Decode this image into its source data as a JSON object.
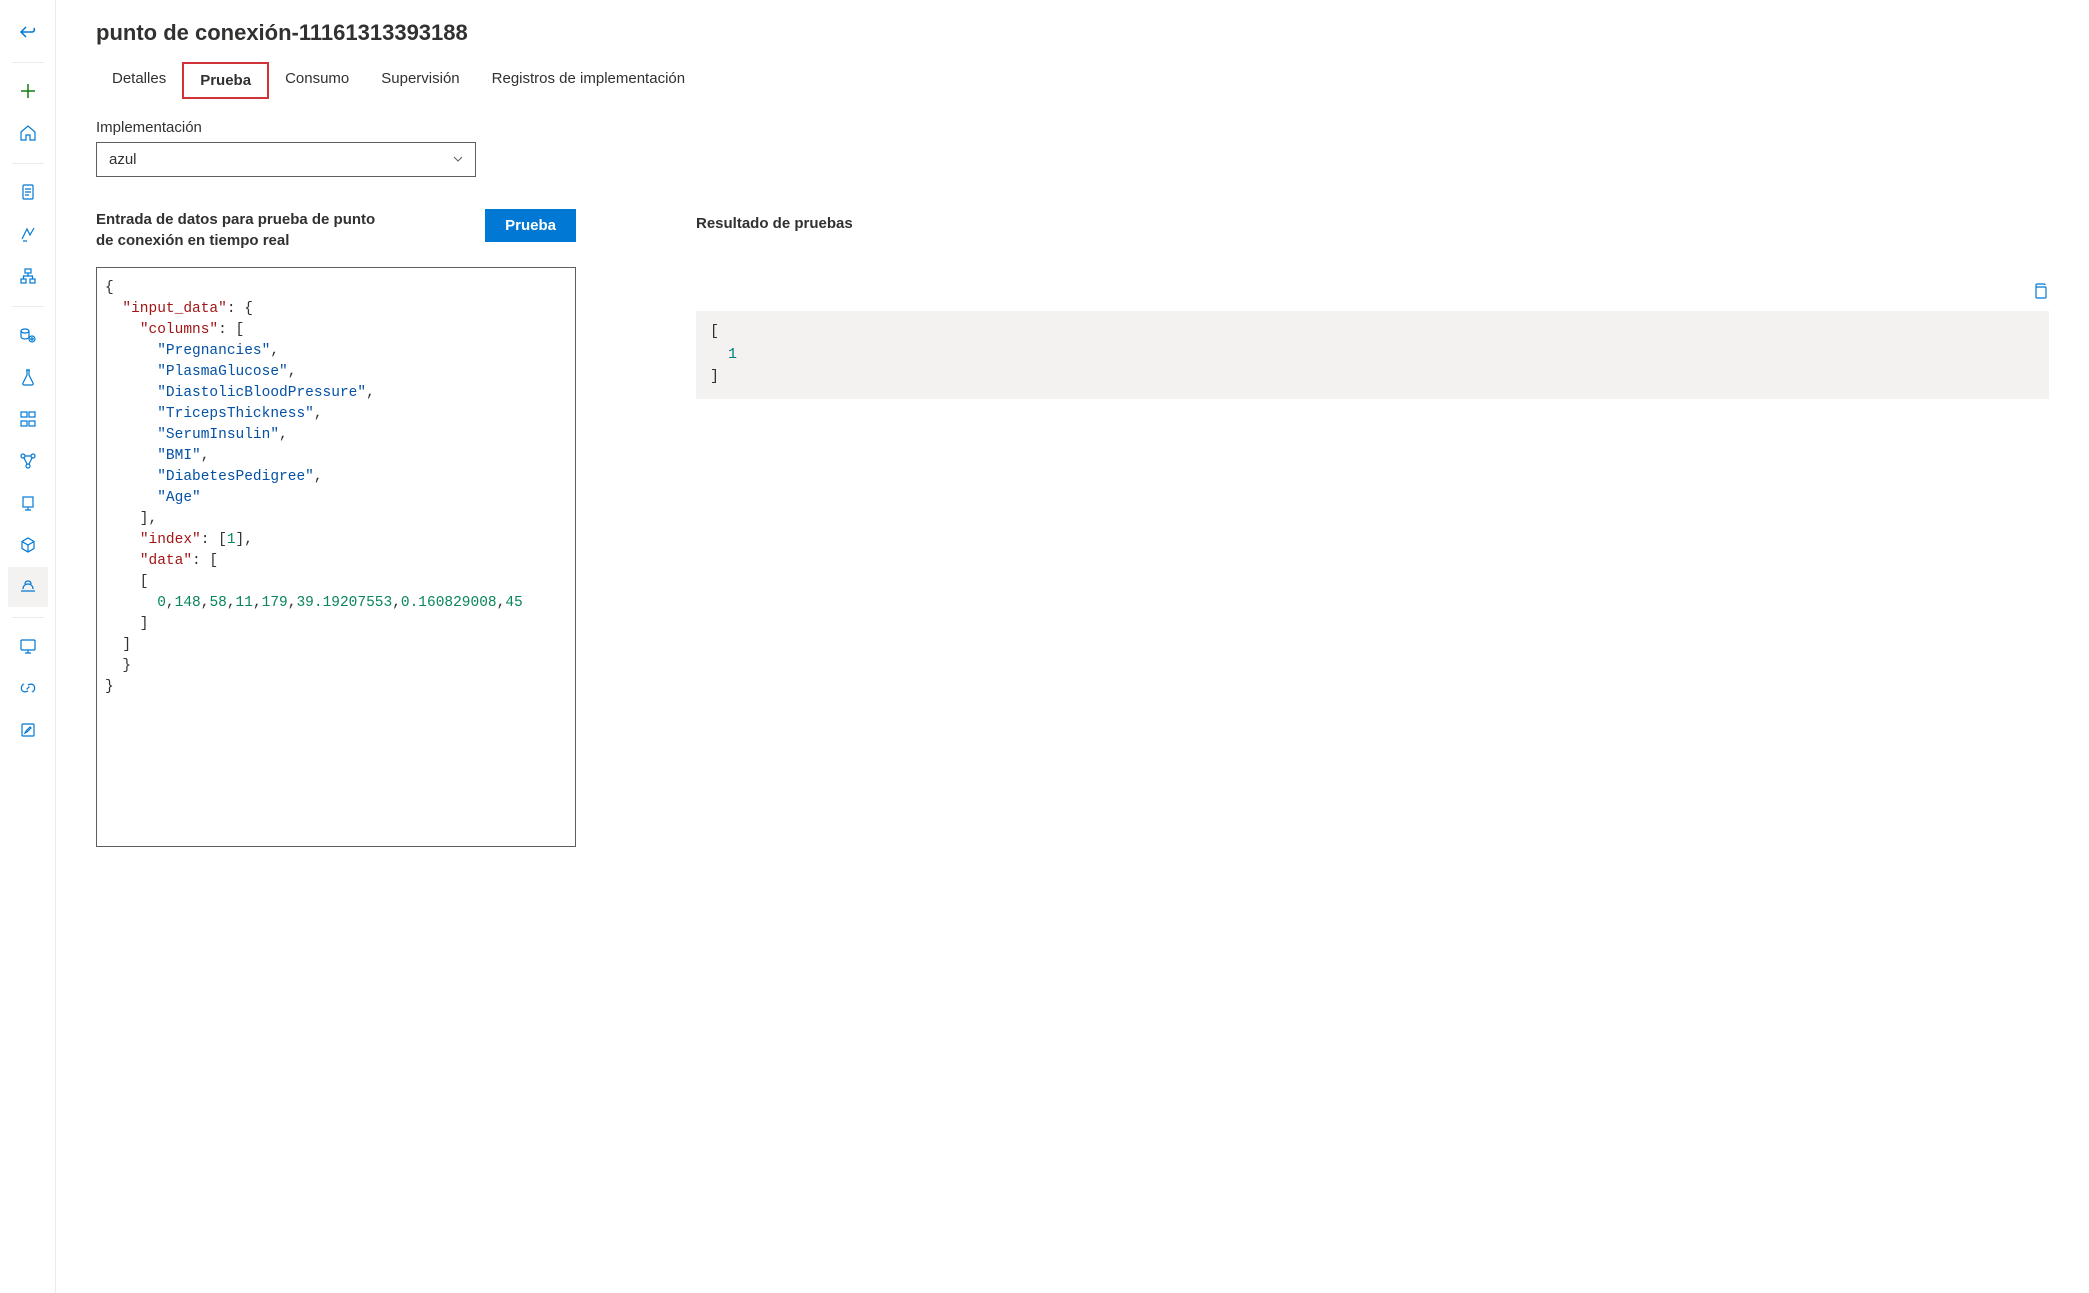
{
  "page": {
    "title": "punto de conexión-11161313393188"
  },
  "tabs": {
    "details": "Detalles",
    "test": "Prueba",
    "consume": "Consumo",
    "monitor": "Supervisión",
    "logs": "Registros de implementación"
  },
  "deployment": {
    "label": "Implementación",
    "value": "azul"
  },
  "input_section": {
    "title": "Entrada de datos para prueba de punto de conexión en tiempo real",
    "button": "Prueba"
  },
  "result_section": {
    "title": "Resultado de pruebas"
  },
  "input_json": {
    "columns": [
      "Pregnancies",
      "PlasmaGlucose",
      "DiastolicBloodPressure",
      "TricepsThickness",
      "SerumInsulin",
      "BMI",
      "DiabetesPedigree",
      "Age"
    ],
    "index": [
      1
    ],
    "data_row": [
      "0",
      "148",
      "58",
      "11",
      "179",
      "39.19207553",
      "0.160829008",
      "45"
    ]
  },
  "output_json": {
    "value": "1"
  },
  "colors": {
    "primary": "#0078d4",
    "json_key": "#a31515",
    "json_string": "#0451a5",
    "json_number": "#098658",
    "result_bg": "#f3f2f1",
    "result_value": "#008080",
    "highlight_border": "#d13438"
  }
}
